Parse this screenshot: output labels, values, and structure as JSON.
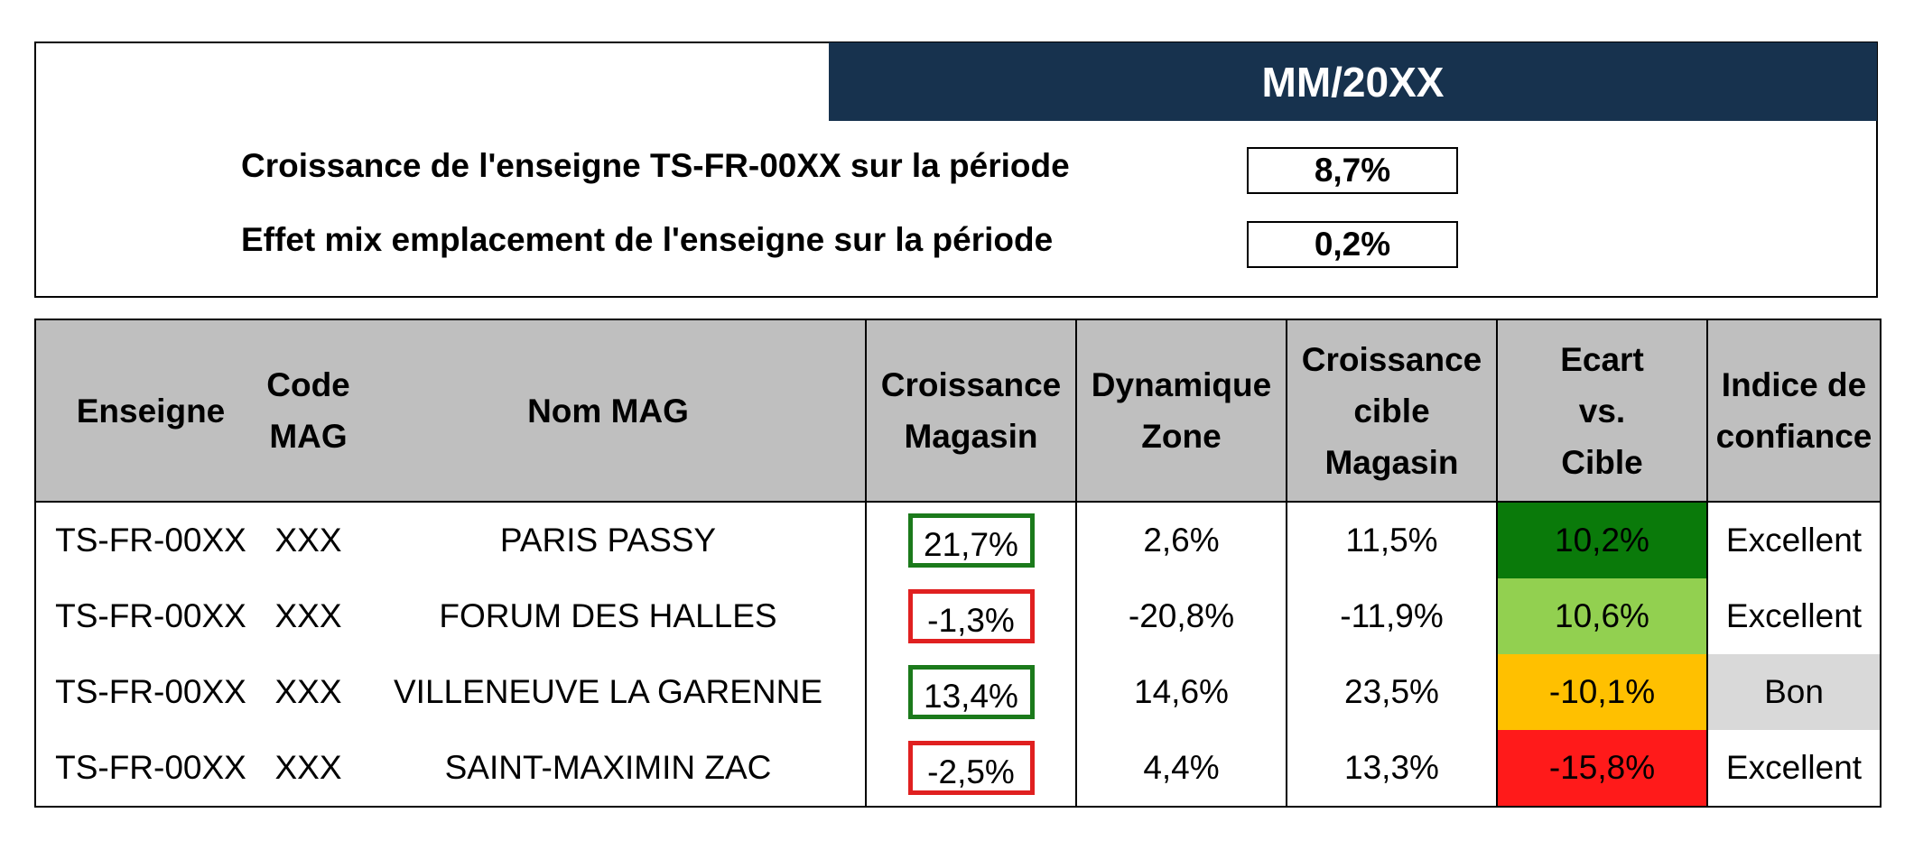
{
  "header": {
    "period": "MM/20XX",
    "kpis": [
      {
        "label": "Croissance de l'enseigne TS-FR-00XX sur la période",
        "value": "8,7%"
      },
      {
        "label": "Effet mix emplacement de l'enseigne sur la période",
        "value": "0,2%"
      }
    ]
  },
  "table": {
    "columns": {
      "enseigne": "Enseigne",
      "code_l1": "Code",
      "code_l2": "MAG",
      "nom": "Nom MAG",
      "croissance_l1": "Croissance",
      "croissance_l2": "Magasin",
      "dynamique_l1": "Dynamique",
      "dynamique_l2": "Zone",
      "cible_l1": "Croissance",
      "cible_l2": "cible",
      "cible_l3": "Magasin",
      "ecart_l1": "Ecart",
      "ecart_l2": "vs.",
      "ecart_l3": "Cible",
      "indice_l1": "Indice de",
      "indice_l2": "confiance"
    },
    "rows": [
      {
        "enseigne": "TS-FR-00XX",
        "code": "XXX",
        "nom": "PARIS PASSY",
        "croissance": "21,7%",
        "croissance_status": "positive",
        "dynamique": "2,6%",
        "cible": "11,5%",
        "ecart": "10,2%",
        "ecart_color": "#0a7a0a",
        "indice": "Excellent",
        "indice_bg": "#ffffff"
      },
      {
        "enseigne": "TS-FR-00XX",
        "code": "XXX",
        "nom": "FORUM DES HALLES",
        "croissance": "-1,3%",
        "croissance_status": "negative",
        "dynamique": "-20,8%",
        "cible": "-11,9%",
        "ecart": "10,6%",
        "ecart_color": "#92d050",
        "indice": "Excellent",
        "indice_bg": "#ffffff"
      },
      {
        "enseigne": "TS-FR-00XX",
        "code": "XXX",
        "nom": "VILLENEUVE LA GARENNE",
        "croissance": "13,4%",
        "croissance_status": "positive",
        "dynamique": "14,6%",
        "cible": "23,5%",
        "ecart": "-10,1%",
        "ecart_color": "#ffc000",
        "indice": "Bon",
        "indice_bg": "#d9d9d9"
      },
      {
        "enseigne": "TS-FR-00XX",
        "code": "XXX",
        "nom": "SAINT-MAXIMIN ZAC",
        "croissance": "-2,5%",
        "croissance_status": "negative",
        "dynamique": "4,4%",
        "cible": "13,3%",
        "ecart": "-15,8%",
        "ecart_color": "#ff1a1a",
        "indice": "Excellent",
        "indice_bg": "#ffffff"
      }
    ]
  }
}
